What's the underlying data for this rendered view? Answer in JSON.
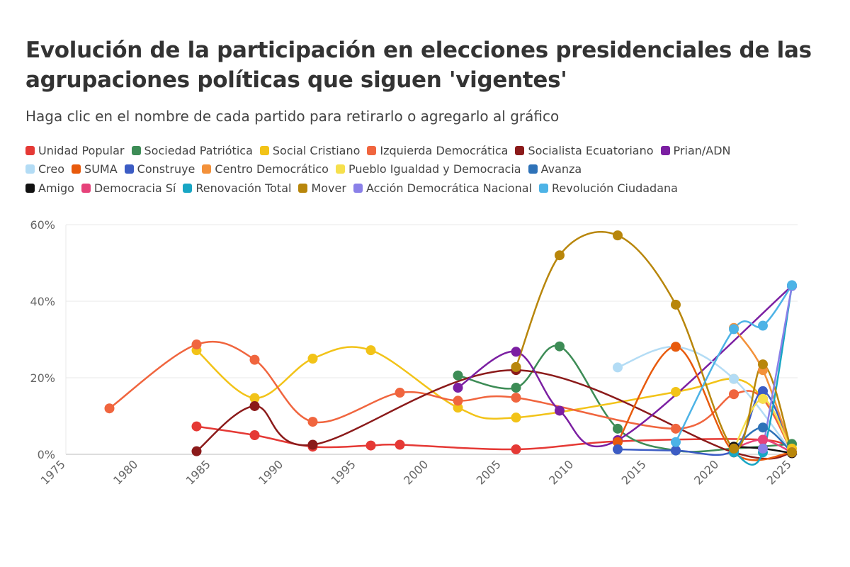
{
  "title": "Evolución de la participación en elecciones presidenciales de las agrupaciones políticas que siguen 'vigentes'",
  "subtitle": "Haga clic en el nombre de cada partido para retirarlo o agregarlo al gráfico",
  "chart_data": {
    "type": "line",
    "title": "Evolución de la participación en elecciones presidenciales de las agrupaciones políticas que siguen 'vigentes'",
    "subtitle": "Haga clic en el nombre de cada partido para retirarlo o agregarlo al gráfico",
    "xlabel": "",
    "ylabel": "",
    "xlim": [
      1975,
      2025
    ],
    "ylim": [
      0,
      60
    ],
    "x_ticks": [
      "1975",
      "1980",
      "1985",
      "1990",
      "1995",
      "2000",
      "2005",
      "2010",
      "2015",
      "2020",
      "2025"
    ],
    "y_ticks": [
      "0%",
      "20%",
      "40%",
      "60%"
    ],
    "grid": true,
    "legend_position": "top",
    "series": [
      {
        "name": "Unidad Popular",
        "color": "#e53935",
        "points": [
          [
            1984,
            7.3
          ],
          [
            1988,
            5
          ],
          [
            1992,
            2
          ],
          [
            1996,
            2.3
          ],
          [
            1998,
            2.5
          ],
          [
            2006,
            1.3
          ],
          [
            2013,
            3.4
          ],
          [
            2023,
            3.8
          ],
          [
            2025,
            0.5
          ]
        ]
      },
      {
        "name": "Sociedad Patriótica",
        "color": "#3d8c56",
        "points": [
          [
            2002,
            20.6
          ],
          [
            2006,
            17.4
          ],
          [
            2009,
            28.2
          ],
          [
            2013,
            6.7
          ],
          [
            2017,
            1
          ],
          [
            2021,
            1.5
          ],
          [
            2025,
            2.7
          ]
        ]
      },
      {
        "name": "Social Cristiano",
        "color": "#f2c318",
        "points": [
          [
            1984,
            27.2
          ],
          [
            1988,
            14.7
          ],
          [
            1992,
            25
          ],
          [
            1996,
            27.2
          ],
          [
            2002,
            12.2
          ],
          [
            2006,
            9.6
          ],
          [
            2017,
            16.3
          ],
          [
            2021,
            19.7
          ],
          [
            2023,
            14.5
          ],
          [
            2025,
            1.5
          ]
        ]
      },
      {
        "name": "Izquierda Democrática",
        "color": "#f0653e",
        "points": [
          [
            1978,
            12
          ],
          [
            1984,
            28.7
          ],
          [
            1988,
            24.7
          ],
          [
            1992,
            8.5
          ],
          [
            1998,
            16.1
          ],
          [
            2002,
            14
          ],
          [
            2006,
            14.8
          ],
          [
            2017,
            6.7
          ],
          [
            2021,
            15.7
          ],
          [
            2023,
            14.5
          ],
          [
            2025,
            0.5
          ]
        ]
      },
      {
        "name": "Socialista Ecuatoriano",
        "color": "#8b1a1a",
        "points": [
          [
            1984,
            0.8
          ],
          [
            1988,
            12.6
          ],
          [
            1992,
            2.5
          ],
          [
            2006,
            22
          ],
          [
            2021,
            0.5
          ],
          [
            2025,
            0.3
          ]
        ]
      },
      {
        "name": "Prian/ADN",
        "color": "#7b1fa2",
        "points": [
          [
            2002,
            17.4
          ],
          [
            2006,
            26.8
          ],
          [
            2009,
            11.4
          ],
          [
            2013,
            3.7
          ],
          [
            2025,
            44
          ]
        ]
      },
      {
        "name": "Creo",
        "color": "#b3dcf5",
        "points": [
          [
            2013,
            22.7
          ],
          [
            2017,
            28.1
          ],
          [
            2021,
            19.7
          ],
          [
            2025,
            0.5
          ]
        ]
      },
      {
        "name": "SUMA",
        "color": "#e85a0c",
        "points": [
          [
            2013,
            3.2
          ],
          [
            2017,
            28.1
          ],
          [
            2021,
            0.5
          ],
          [
            2025,
            0.5
          ]
        ]
      },
      {
        "name": "Construye",
        "color": "#3c5cc4",
        "points": [
          [
            2013,
            1.3
          ],
          [
            2017,
            1
          ],
          [
            2021,
            1
          ],
          [
            2023,
            16.5
          ],
          [
            2025,
            0.5
          ]
        ]
      },
      {
        "name": "Centro Democrático",
        "color": "#f3913a",
        "points": [
          [
            2021,
            33
          ],
          [
            2023,
            22
          ],
          [
            2025,
            0.5
          ]
        ]
      },
      {
        "name": "Pueblo Igualdad y Democracia",
        "color": "#f6e04c",
        "points": [
          [
            2021,
            1.5
          ],
          [
            2023,
            14.5
          ],
          [
            2025,
            0.5
          ]
        ]
      },
      {
        "name": "Avanza",
        "color": "#2e72b8",
        "points": [
          [
            2021,
            1.5
          ],
          [
            2023,
            7
          ],
          [
            2025,
            0.5
          ]
        ]
      },
      {
        "name": "Amigo",
        "color": "#111111",
        "points": [
          [
            2021,
            2
          ],
          [
            2023,
            1.5
          ],
          [
            2025,
            0.3
          ]
        ]
      },
      {
        "name": "Democracia Sí",
        "color": "#e6427a",
        "points": [
          [
            2021,
            1.5
          ],
          [
            2023,
            3.8
          ],
          [
            2025,
            0.5
          ]
        ]
      },
      {
        "name": "Renovación Total",
        "color": "#18a6c4",
        "points": [
          [
            2021,
            0.5
          ],
          [
            2023,
            0.5
          ],
          [
            2025,
            44
          ]
        ]
      },
      {
        "name": "Mover",
        "color": "#b8860b",
        "points": [
          [
            2006,
            22.8
          ],
          [
            2009,
            52
          ],
          [
            2013,
            57.2
          ],
          [
            2017,
            39.1
          ],
          [
            2021,
            1.5
          ],
          [
            2023,
            23.5
          ],
          [
            2025,
            0.5
          ]
        ]
      },
      {
        "name": "Acción Democrática Nacional",
        "color": "#8a80e8",
        "points": [
          [
            2023,
            1.5
          ],
          [
            2025,
            44
          ]
        ]
      },
      {
        "name": "Revolución Ciudadana",
        "color": "#4db3e6",
        "points": [
          [
            2017,
            3.2
          ],
          [
            2021,
            32.7
          ],
          [
            2023,
            33.6
          ],
          [
            2025,
            44.2
          ]
        ]
      }
    ]
  }
}
